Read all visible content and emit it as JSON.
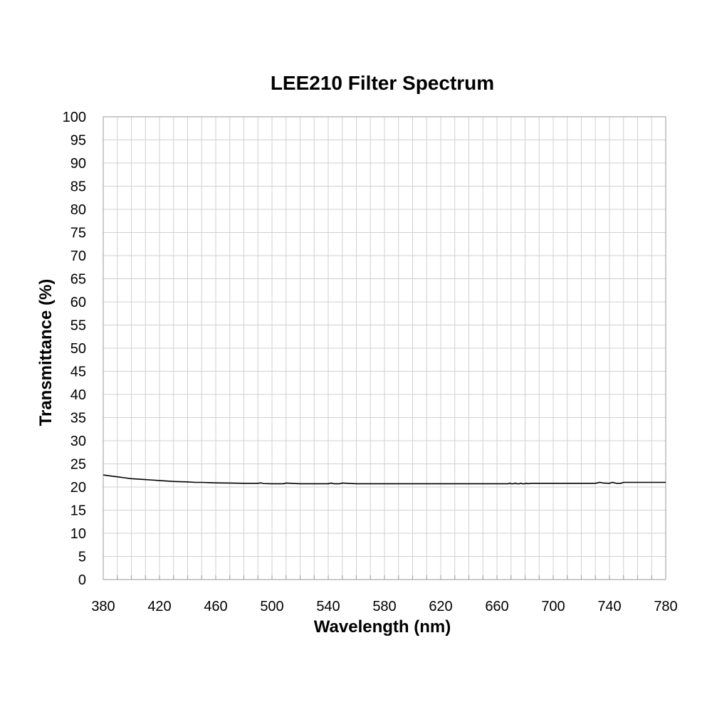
{
  "chart_data": {
    "type": "line",
    "title": "LEE210 Filter Spectrum",
    "xlabel": "Wavelength (nm)",
    "ylabel": "Transmittance (%)",
    "xlim": [
      380,
      780
    ],
    "ylim": [
      0,
      100
    ],
    "x_ticks": [
      380,
      420,
      460,
      500,
      540,
      580,
      620,
      660,
      700,
      740,
      780
    ],
    "y_ticks": [
      0,
      5,
      10,
      15,
      20,
      25,
      30,
      35,
      40,
      45,
      50,
      55,
      60,
      65,
      70,
      75,
      80,
      85,
      90,
      95,
      100
    ],
    "grid": true,
    "line_color": "#000000",
    "series": [
      {
        "x": [
          380,
          385,
          390,
          395,
          400,
          405,
          410,
          415,
          420,
          425,
          430,
          435,
          440,
          445,
          450,
          455,
          460,
          470,
          480,
          490,
          492,
          494,
          500,
          508,
          510,
          520,
          540,
          542,
          544,
          548,
          550,
          560,
          580,
          600,
          620,
          640,
          660,
          668,
          669,
          670,
          672,
          673,
          674,
          676,
          677,
          678,
          680,
          681,
          682,
          684,
          690,
          700,
          720,
          730,
          733,
          736,
          740,
          742,
          745,
          748,
          750,
          760,
          780
        ],
        "y": [
          22.6,
          22.4,
          22.2,
          22.0,
          21.8,
          21.7,
          21.6,
          21.5,
          21.4,
          21.3,
          21.2,
          21.15,
          21.1,
          21.0,
          21.0,
          20.95,
          20.9,
          20.85,
          20.8,
          20.8,
          20.9,
          20.75,
          20.7,
          20.7,
          20.85,
          20.7,
          20.7,
          20.85,
          20.7,
          20.7,
          20.85,
          20.7,
          20.7,
          20.7,
          20.7,
          20.7,
          20.7,
          20.7,
          20.85,
          20.7,
          20.7,
          20.85,
          20.7,
          20.7,
          20.85,
          20.7,
          20.7,
          20.85,
          20.7,
          20.8,
          20.8,
          20.8,
          20.8,
          20.8,
          21.0,
          20.85,
          20.8,
          21.0,
          20.8,
          20.8,
          21.0,
          21.0,
          21.0
        ]
      }
    ]
  }
}
